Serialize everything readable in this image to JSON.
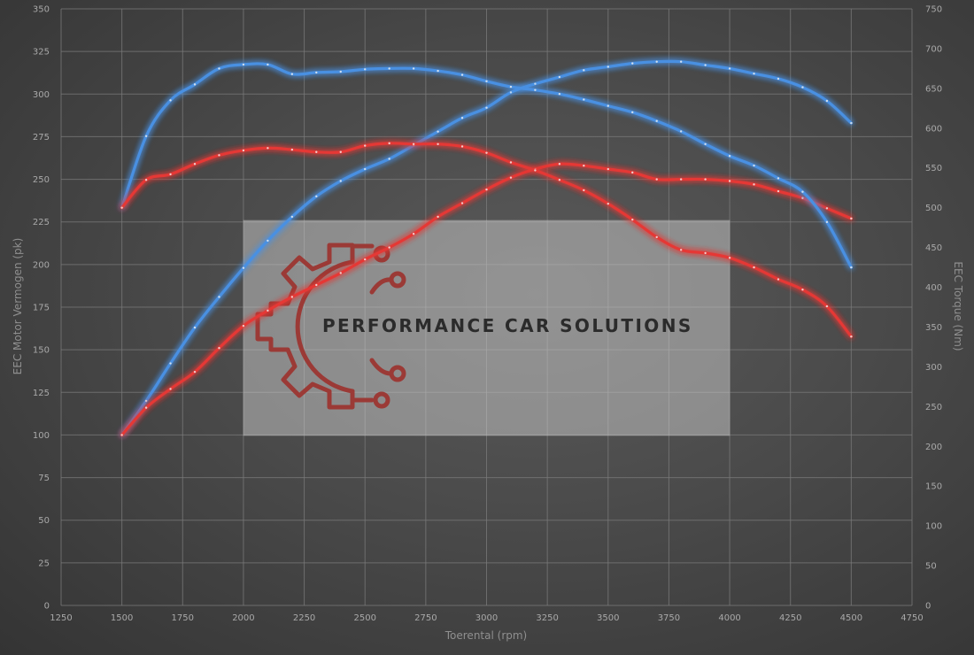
{
  "chart_data": {
    "type": "line",
    "xlabel": "Toerental (rpm)",
    "ylabel_left": "EEC Motor Vermogen (pk)",
    "ylabel_right": "EEC Torque (Nm)",
    "xlim": [
      1250,
      4750
    ],
    "ylim_left": [
      0,
      350
    ],
    "ylim_right": [
      0,
      750
    ],
    "x_ticks": [
      1250,
      1500,
      1750,
      2000,
      2250,
      2500,
      2750,
      3000,
      3250,
      3500,
      3750,
      4000,
      4250,
      4500,
      4750
    ],
    "y_ticks_left": [
      0,
      25,
      50,
      75,
      100,
      125,
      150,
      175,
      200,
      225,
      250,
      275,
      300,
      325,
      350
    ],
    "y_ticks_right": [
      0,
      50,
      100,
      150,
      200,
      250,
      300,
      350,
      400,
      450,
      500,
      550,
      600,
      650,
      700,
      750
    ],
    "grid": true,
    "series": [
      {
        "axis": "left",
        "color": "#4a90e2",
        "x": [
          1500,
          1600,
          1700,
          1800,
          1900,
          2000,
          2100,
          2200,
          2300,
          2400,
          2500,
          2600,
          2700,
          2800,
          2900,
          3000,
          3100,
          3200,
          3300,
          3400,
          3500,
          3600,
          3700,
          3800,
          3900,
          4000,
          4100,
          4200,
          4300,
          4400,
          4500
        ],
        "values": [
          100,
          120,
          142,
          163,
          181,
          198,
          214,
          228,
          240,
          249,
          256,
          262,
          270,
          278,
          286,
          292,
          301,
          306,
          310,
          314,
          316,
          318,
          319,
          319,
          317,
          315,
          312,
          309,
          304,
          296,
          283
        ]
      },
      {
        "axis": "left",
        "color": "#e53935",
        "x": [
          1500,
          1600,
          1700,
          1800,
          1900,
          2000,
          2100,
          2200,
          2300,
          2400,
          2500,
          2600,
          2700,
          2800,
          2900,
          3000,
          3100,
          3200,
          3300,
          3400,
          3500,
          3600,
          3700,
          3800,
          3900,
          4000,
          4100,
          4200,
          4300,
          4400,
          4500
        ],
        "values": [
          100,
          116,
          127,
          137,
          151,
          164,
          173,
          181,
          188,
          195,
          203,
          210,
          218,
          228,
          236,
          244,
          251,
          256,
          259,
          258,
          256,
          254,
          250,
          250,
          250,
          249,
          247,
          243,
          239,
          233,
          227
        ]
      },
      {
        "axis": "right",
        "color": "#4a90e2",
        "x": [
          1500,
          1600,
          1700,
          1800,
          1900,
          2000,
          2100,
          2200,
          2300,
          2400,
          2500,
          2600,
          2700,
          2800,
          2900,
          3000,
          3100,
          3200,
          3300,
          3400,
          3500,
          3600,
          3700,
          3800,
          3900,
          4000,
          4100,
          4200,
          4300,
          4400,
          4500
        ],
        "values": [
          500,
          590,
          635,
          655,
          675,
          680,
          680,
          668,
          670,
          671,
          674,
          675,
          675,
          672,
          667,
          659,
          652,
          648,
          643,
          636,
          628,
          620,
          609,
          596,
          580,
          565,
          553,
          537,
          520,
          482,
          425
        ]
      },
      {
        "axis": "right",
        "color": "#e53935",
        "x": [
          1500,
          1600,
          1700,
          1800,
          1900,
          2000,
          2100,
          2200,
          2300,
          2400,
          2500,
          2600,
          2700,
          2800,
          2900,
          3000,
          3100,
          3200,
          3300,
          3400,
          3500,
          3600,
          3700,
          3800,
          3900,
          4000,
          4100,
          4200,
          4300,
          4400,
          4500
        ],
        "values": [
          500,
          535,
          542,
          555,
          566,
          572,
          575,
          573,
          570,
          570,
          578,
          581,
          580,
          580,
          577,
          569,
          557,
          547,
          535,
          522,
          505,
          485,
          463,
          447,
          443,
          437,
          425,
          410,
          397,
          376,
          338
        ]
      }
    ]
  },
  "watermark": {
    "text": "PERFORMANCE CAR SOLUTIONS",
    "icon": "gear-circuit-icon",
    "icon_color": "#9b3a36"
  }
}
